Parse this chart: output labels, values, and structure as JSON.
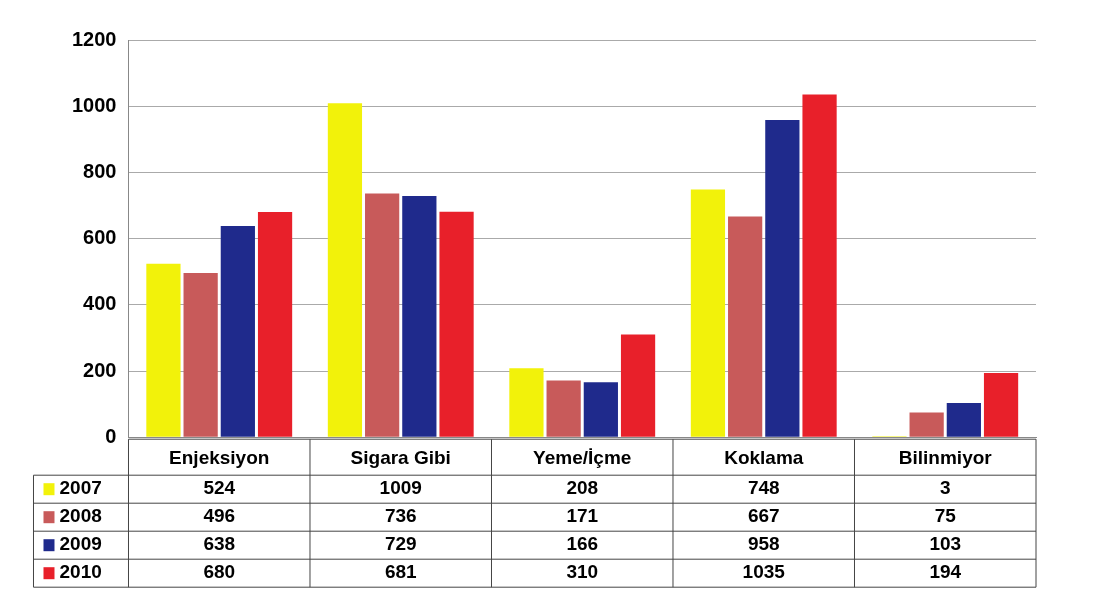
{
  "chart_data": {
    "type": "bar",
    "categories": [
      "Enjeksiyon",
      "Sigara Gibi",
      "Yeme/İçme",
      "Koklama",
      "Bilinmiyor"
    ],
    "series": [
      {
        "name": "2007",
        "color": "#f2f20a",
        "values": [
          524,
          1009,
          208,
          748,
          3
        ]
      },
      {
        "name": "2008",
        "color": "#c85a5a",
        "values": [
          496,
          736,
          171,
          667,
          75
        ]
      },
      {
        "name": "2009",
        "color": "#1f2a8c",
        "values": [
          638,
          729,
          166,
          958,
          103
        ]
      },
      {
        "name": "2010",
        "color": "#e8202a",
        "values": [
          680,
          681,
          310,
          1035,
          194
        ]
      }
    ],
    "ylim": [
      0,
      1200
    ],
    "yticks": [
      0,
      200,
      400,
      600,
      800,
      1000,
      1200
    ],
    "grid": "y",
    "legend": "bottom left",
    "data_labels": true
  }
}
